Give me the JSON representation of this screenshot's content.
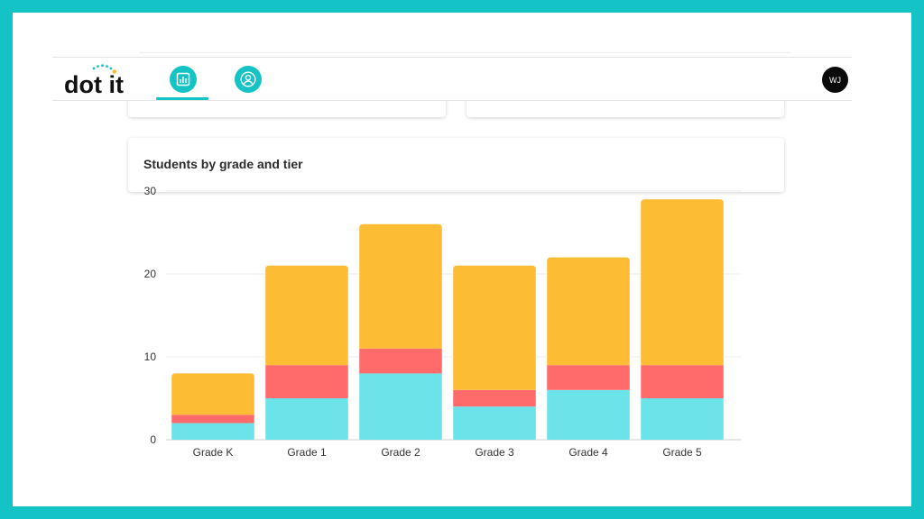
{
  "app": {
    "logo_text": "dot it",
    "avatar_initials": "WJ"
  },
  "nav": {
    "items": [
      {
        "id": "dashboard",
        "icon": "bar-chart-icon",
        "active": true
      },
      {
        "id": "profile",
        "icon": "user-icon",
        "active": false
      }
    ]
  },
  "colors": {
    "brand": "#14c3c5",
    "tier1": "#6ce3e8",
    "tier2": "#ff6b6b",
    "tier3": "#fcbc33"
  },
  "chart_card": {
    "title": "Students by grade and tier"
  },
  "chart_data": {
    "type": "bar",
    "stacked": true,
    "title": "Students by grade and tier",
    "categories": [
      "Grade K",
      "Grade 1",
      "Grade 2",
      "Grade 3",
      "Grade 4",
      "Grade 5"
    ],
    "series": [
      {
        "values": [
          2,
          5,
          8,
          4,
          6,
          5
        ],
        "color": "#6ce3e8"
      },
      {
        "values": [
          1,
          4,
          3,
          2,
          3,
          4
        ],
        "color": "#ff6b6b"
      },
      {
        "values": [
          5,
          12,
          15,
          15,
          13,
          20
        ],
        "color": "#fcbc33"
      }
    ],
    "ylim": [
      0,
      30
    ],
    "yticks": [
      0,
      10,
      20,
      30
    ],
    "grid": true,
    "legend": "none"
  }
}
